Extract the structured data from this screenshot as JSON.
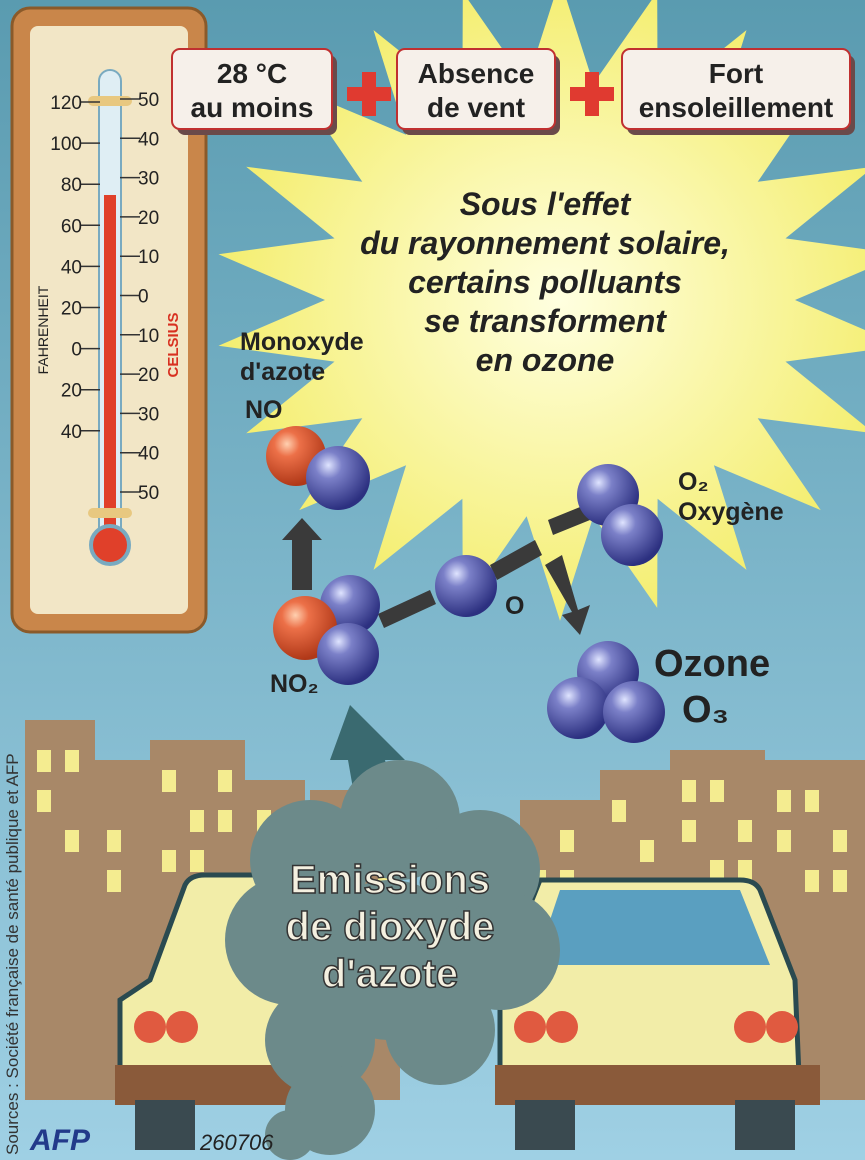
{
  "thermometer": {
    "fahrenheit_label": "FAHRENHEIT",
    "celsius_label": "CELSIUS",
    "fahrenheit_ticks": [
      120,
      100,
      80,
      60,
      40,
      20,
      0,
      20,
      40
    ],
    "celsius_ticks": [
      50,
      40,
      30,
      20,
      10,
      0,
      10,
      20,
      30,
      40,
      50
    ]
  },
  "conditions": [
    {
      "lines": [
        "28 °C",
        "au moins"
      ]
    },
    {
      "lines": [
        "Absence",
        "de vent"
      ]
    },
    {
      "lines": [
        "Fort",
        "ensoleillement"
      ]
    }
  ],
  "sun_text": [
    "Sous l'effet",
    "du rayonnement solaire,",
    "certains polluants",
    "se transforment",
    "en ozone"
  ],
  "molecules": {
    "no": {
      "name": [
        "Monoxyde",
        "d'azote"
      ],
      "formula": "NO"
    },
    "no2": {
      "formula": "NO₂"
    },
    "o": {
      "formula": "O"
    },
    "o2": {
      "formula": "O₂",
      "name": "Oxygène"
    },
    "o3": {
      "name": "Ozone",
      "formula": "O₃"
    }
  },
  "emissions": [
    "Emissions",
    "de dioxyde",
    "d'azote"
  ],
  "footer": {
    "logo": "AFP",
    "code": "260706",
    "source": "Sources : Société française de santé publique et AFP"
  }
}
